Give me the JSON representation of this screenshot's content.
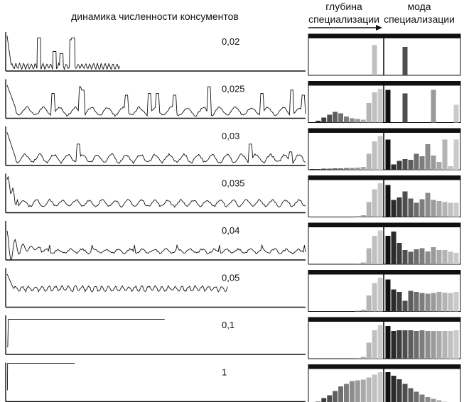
{
  "header": {
    "dynamics_title": "динамика численности консументов",
    "depth_title_line1": "глубина",
    "depth_title_line2": "специализации",
    "mode_title_line1": "мода",
    "mode_title_line2": "специализации"
  },
  "colors": {
    "ink": "#111111",
    "panel_bg": "#ffffff",
    "bar_dark": "#0a0a0a",
    "bar_mid": "#777777",
    "bar_light": "#bdbdbd"
  },
  "panels": [
    {
      "label": "0,02",
      "pattern": "spikes_few",
      "series_extent": 0.38,
      "depth_bars": [
        0.0,
        0.0,
        0.0,
        0.0,
        0.0,
        0.0,
        0.0,
        0.0,
        0.0,
        0.0,
        0.0,
        0.85,
        0.0
      ],
      "mode_bars": [
        0.0,
        0.0,
        0.0,
        0.8,
        0.0,
        0.0,
        0.0,
        0.0,
        0.0,
        0.0,
        0.0,
        0.0,
        0.0
      ]
    },
    {
      "label": "0,025",
      "pattern": "spikes_many",
      "series_extent": 1.0,
      "depth_bars": [
        0.0,
        0.05,
        0.14,
        0.22,
        0.3,
        0.26,
        0.17,
        0.12,
        0.1,
        0.08,
        0.55,
        0.85,
        0.95
      ],
      "mode_bars": [
        0.92,
        0.0,
        0.0,
        0.82,
        0.0,
        0.0,
        0.0,
        0.0,
        0.92,
        0.0,
        0.0,
        0.0,
        0.5
      ]
    },
    {
      "label": "0,03",
      "pattern": "oscillate_spikes",
      "series_extent": 1.0,
      "depth_bars": [
        0.02,
        0.02,
        0.03,
        0.03,
        0.04,
        0.04,
        0.05,
        0.05,
        0.06,
        0.08,
        0.45,
        0.8,
        0.95
      ],
      "mode_bars": [
        0.85,
        0.15,
        0.25,
        0.3,
        0.28,
        0.45,
        0.38,
        0.72,
        0.4,
        0.22,
        0.85,
        0.1,
        0.85
      ]
    },
    {
      "label": "0,035",
      "pattern": "oscillate",
      "series_extent": 1.0,
      "depth_bars": [
        0.0,
        0.0,
        0.0,
        0.0,
        0.0,
        0.0,
        0.0,
        0.0,
        0.02,
        0.05,
        0.42,
        0.78,
        0.95
      ],
      "mode_bars": [
        0.9,
        0.48,
        0.55,
        0.72,
        0.52,
        0.4,
        0.5,
        0.68,
        0.48,
        0.45,
        0.42,
        0.4,
        0.4
      ]
    },
    {
      "label": "0,04",
      "pattern": "damped",
      "series_extent": 1.0,
      "depth_bars": [
        0.0,
        0.0,
        0.0,
        0.0,
        0.0,
        0.0,
        0.0,
        0.0,
        0.02,
        0.05,
        0.45,
        0.8,
        0.95
      ],
      "mode_bars": [
        0.8,
        0.92,
        0.6,
        0.4,
        0.35,
        0.42,
        0.45,
        0.36,
        0.48,
        0.4,
        0.4,
        0.35,
        0.32
      ]
    },
    {
      "label": "0,05",
      "pattern": "noisy_short",
      "series_extent": 0.74,
      "depth_bars": [
        0.0,
        0.0,
        0.0,
        0.0,
        0.0,
        0.0,
        0.0,
        0.0,
        0.02,
        0.05,
        0.45,
        0.8,
        0.95
      ],
      "mode_bars": [
        0.9,
        0.62,
        0.55,
        0.3,
        0.58,
        0.55,
        0.52,
        0.5,
        0.52,
        0.55,
        0.53,
        0.52,
        0.55
      ]
    },
    {
      "label": "0,1",
      "pattern": "flat",
      "series_extent": 0.53,
      "depth_bars": [
        0.0,
        0.0,
        0.0,
        0.0,
        0.0,
        0.0,
        0.0,
        0.0,
        0.02,
        0.05,
        0.45,
        0.8,
        0.95
      ],
      "mode_bars": [
        0.92,
        0.78,
        0.8,
        0.8,
        0.8,
        0.78,
        0.8,
        0.78,
        0.78,
        0.78,
        0.78,
        0.78,
        0.8
      ]
    },
    {
      "label": "1",
      "pattern": "flat_short",
      "series_extent": 0.23,
      "depth_bars": [
        0.05,
        0.12,
        0.22,
        0.3,
        0.42,
        0.55,
        0.62,
        0.7,
        0.72,
        0.74,
        0.8,
        0.88,
        0.95
      ],
      "mode_bars": [
        0.95,
        0.85,
        0.75,
        0.62,
        0.5,
        0.4,
        0.32,
        0.25,
        0.2,
        0.16,
        0.12,
        0.1,
        0.08
      ]
    }
  ]
}
